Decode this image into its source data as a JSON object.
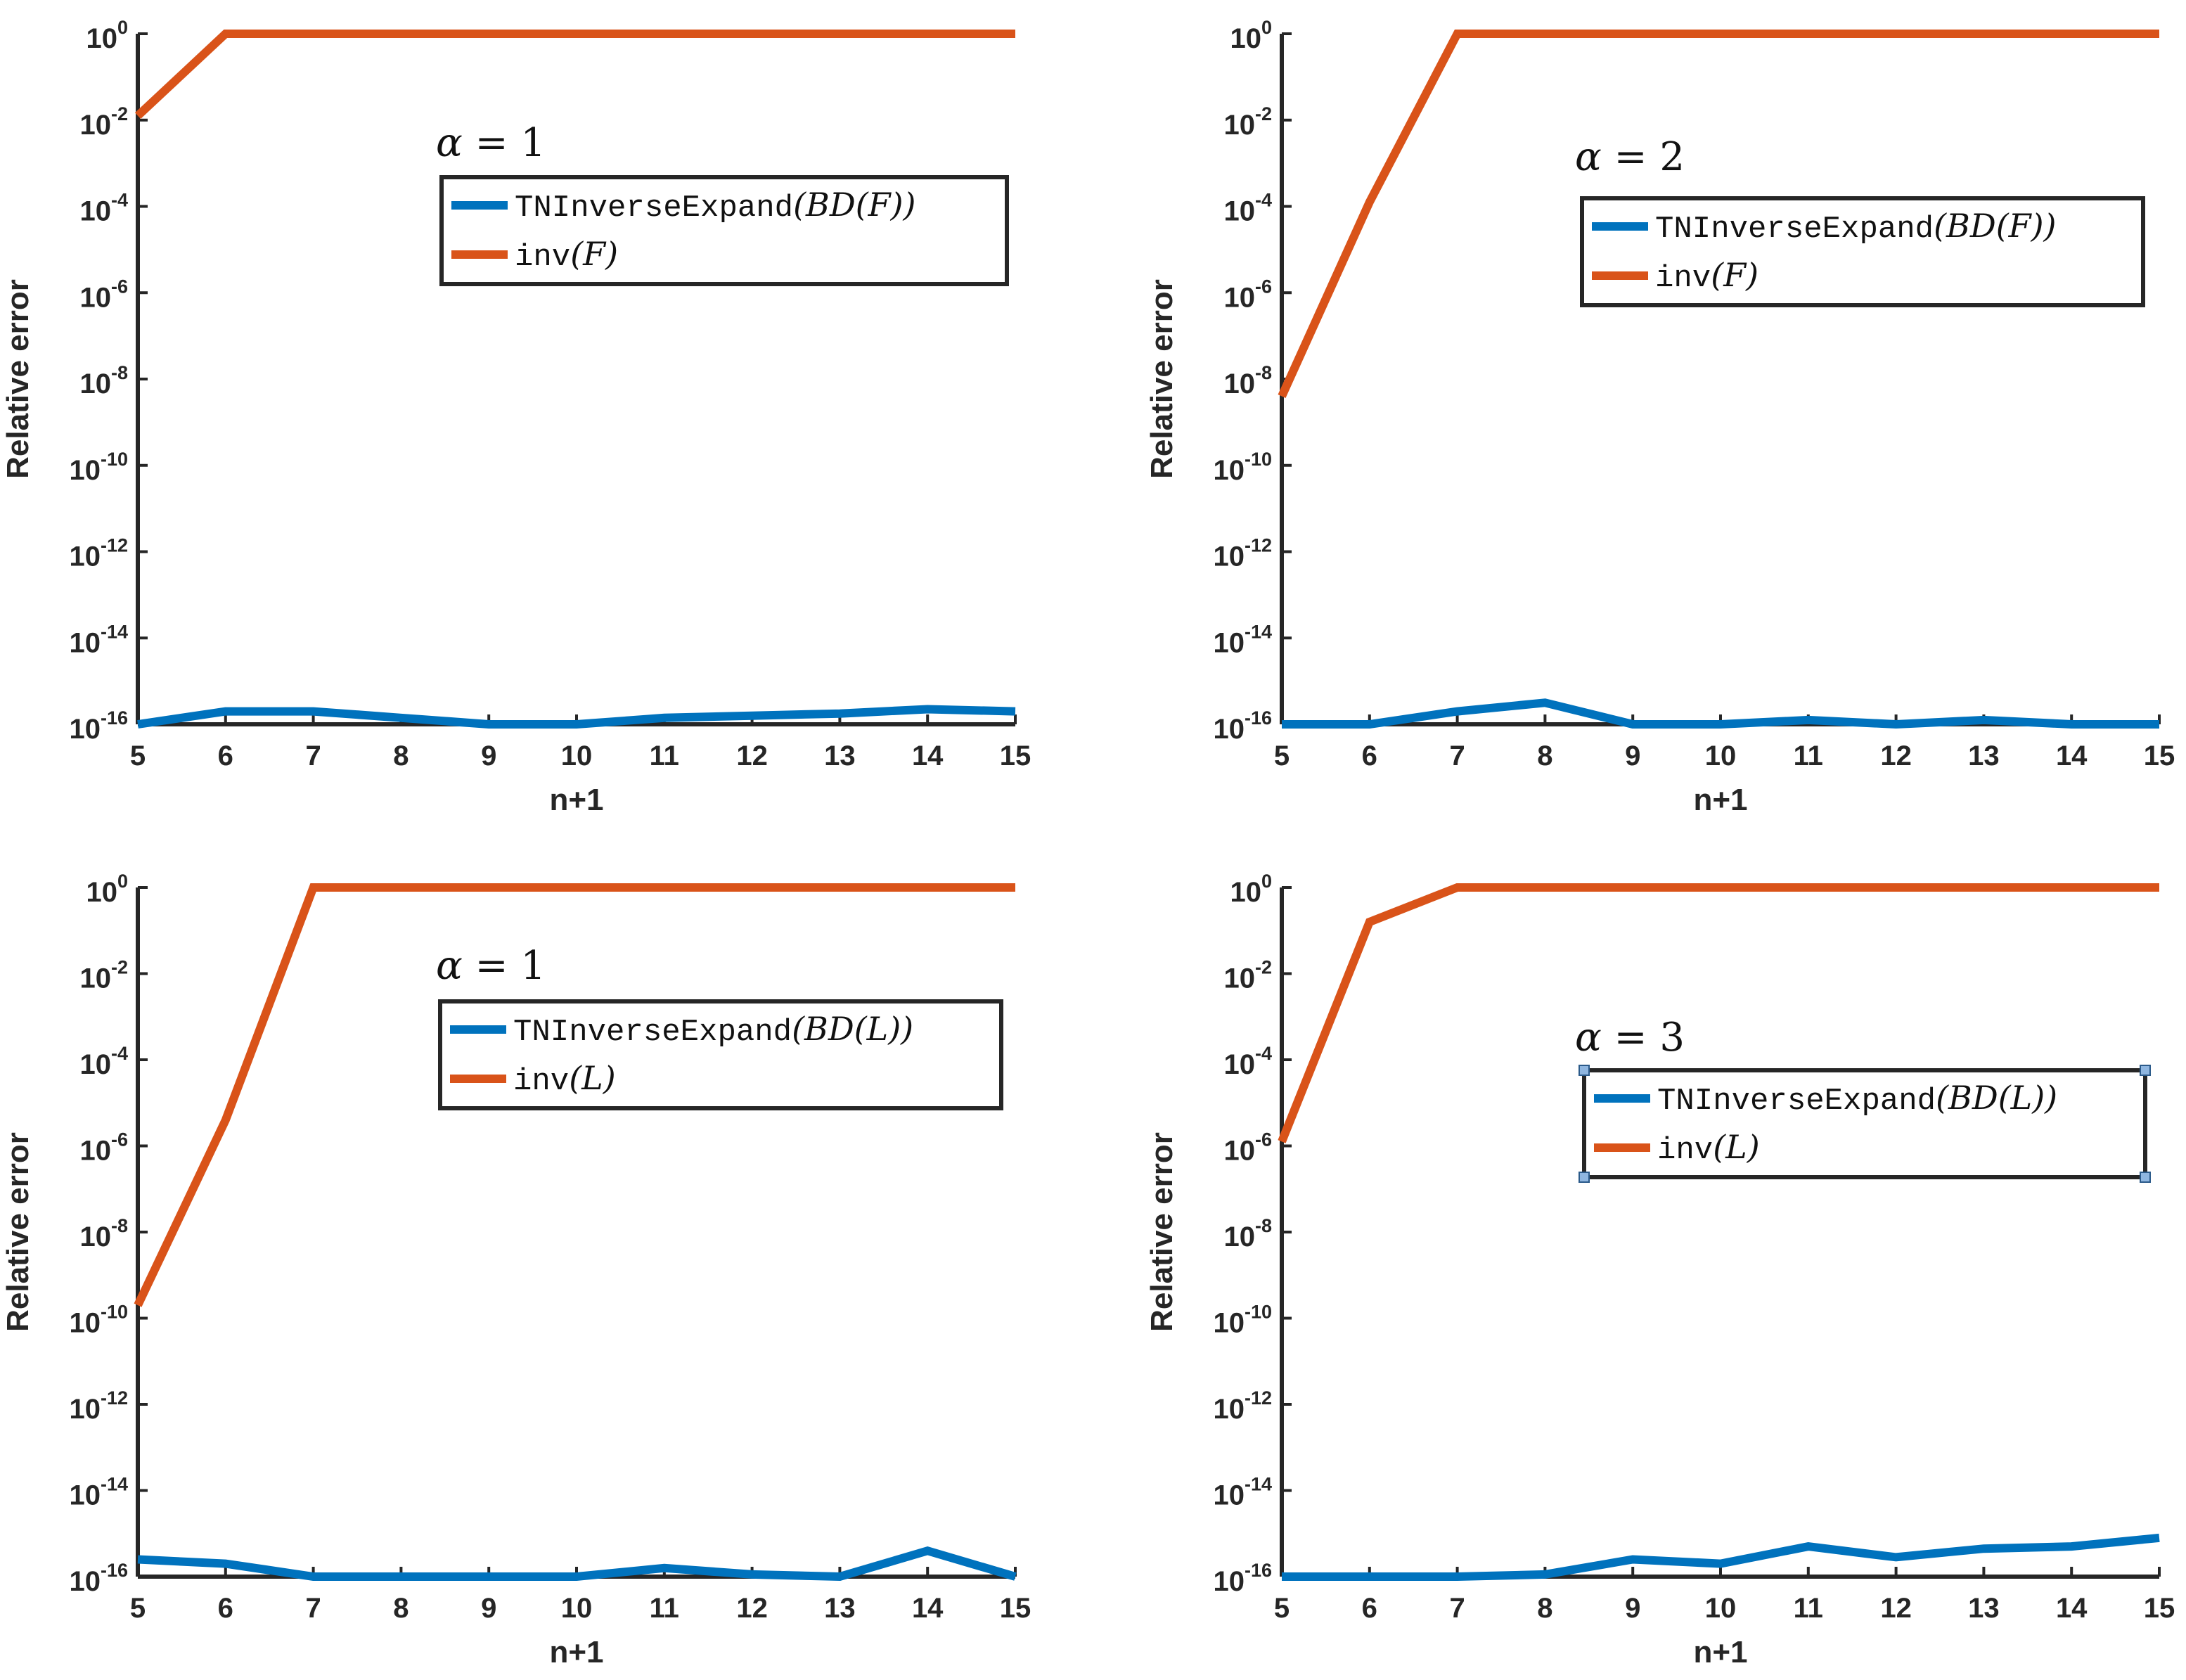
{
  "chart_data": [
    {
      "type": "line",
      "title": "",
      "xlabel": "n+1",
      "ylabel": "Relative error",
      "yscale": "log",
      "xlim": [
        5,
        15
      ],
      "ylim_exponents": [
        -16,
        0
      ],
      "x_ticks": [
        "5",
        "6",
        "7",
        "8",
        "9",
        "10",
        "11",
        "12",
        "13",
        "14",
        "15"
      ],
      "y_ticks": [
        {
          "base": "10",
          "exp": "0"
        },
        {
          "base": "10",
          "exp": "-2"
        },
        {
          "base": "10",
          "exp": "-4"
        },
        {
          "base": "10",
          "exp": "-6"
        },
        {
          "base": "10",
          "exp": "-8"
        },
        {
          "base": "10",
          "exp": "-10"
        },
        {
          "base": "10",
          "exp": "-12"
        },
        {
          "base": "10",
          "exp": "-14"
        },
        {
          "base": "10",
          "exp": "-16"
        }
      ],
      "annotation": {
        "symbol": "α",
        "rest": " = 1"
      },
      "legend_position": "top-center",
      "x": [
        5,
        6,
        7,
        8,
        9,
        10,
        11,
        12,
        13,
        14,
        15
      ],
      "series": [
        {
          "name": "TNInverseExpand(BD(F))",
          "color": "#0072BD",
          "legend": {
            "mono": "TNInverseExpand",
            "math": "(BD(F))"
          },
          "log10_values": [
            -16,
            -15.7,
            -15.7,
            -15.85,
            -16,
            -16,
            -15.85,
            -15.8,
            -15.75,
            -15.65,
            -15.7
          ]
        },
        {
          "name": "inv(F)",
          "color": "#D95319",
          "legend": {
            "mono": "inv",
            "math": "(F)"
          },
          "log10_values": [
            -1.9,
            0,
            0,
            0,
            0,
            0,
            0,
            0,
            0,
            0,
            0
          ]
        }
      ]
    },
    {
      "type": "line",
      "title": "",
      "xlabel": "n+1",
      "ylabel": "Relative error",
      "yscale": "log",
      "xlim": [
        5,
        15
      ],
      "ylim_exponents": [
        -16,
        0
      ],
      "x_ticks": [
        "5",
        "6",
        "7",
        "8",
        "9",
        "10",
        "11",
        "12",
        "13",
        "14",
        "15"
      ],
      "y_ticks": [
        {
          "base": "10",
          "exp": "0"
        },
        {
          "base": "10",
          "exp": "-2"
        },
        {
          "base": "10",
          "exp": "-4"
        },
        {
          "base": "10",
          "exp": "-6"
        },
        {
          "base": "10",
          "exp": "-8"
        },
        {
          "base": "10",
          "exp": "-10"
        },
        {
          "base": "10",
          "exp": "-12"
        },
        {
          "base": "10",
          "exp": "-14"
        },
        {
          "base": "10",
          "exp": "-16"
        }
      ],
      "annotation": {
        "symbol": "α",
        "rest": " = 2"
      },
      "legend_position": "top-right",
      "x": [
        5,
        6,
        7,
        8,
        9,
        10,
        11,
        12,
        13,
        14,
        15
      ],
      "series": [
        {
          "name": "TNInverseExpand(BD(F))",
          "color": "#0072BD",
          "legend": {
            "mono": "TNInverseExpand",
            "math": "(BD(F))"
          },
          "log10_values": [
            -16,
            -16,
            -15.7,
            -15.5,
            -16,
            -16,
            -15.9,
            -16,
            -15.9,
            -16,
            -16
          ]
        },
        {
          "name": "inv(F)",
          "color": "#D95319",
          "legend": {
            "mono": "inv",
            "math": "(F)"
          },
          "log10_values": [
            -8.4,
            -3.9,
            0,
            0,
            0,
            0,
            0,
            0,
            0,
            0,
            0
          ]
        }
      ]
    },
    {
      "type": "line",
      "title": "",
      "xlabel": "n+1",
      "ylabel": "Relative error",
      "yscale": "log",
      "xlim": [
        5,
        15
      ],
      "ylim_exponents": [
        -16,
        0
      ],
      "x_ticks": [
        "5",
        "6",
        "7",
        "8",
        "9",
        "10",
        "11",
        "12",
        "13",
        "14",
        "15"
      ],
      "y_ticks": [
        {
          "base": "10",
          "exp": "0"
        },
        {
          "base": "10",
          "exp": "-2"
        },
        {
          "base": "10",
          "exp": "-4"
        },
        {
          "base": "10",
          "exp": "-6"
        },
        {
          "base": "10",
          "exp": "-8"
        },
        {
          "base": "10",
          "exp": "-10"
        },
        {
          "base": "10",
          "exp": "-12"
        },
        {
          "base": "10",
          "exp": "-14"
        },
        {
          "base": "10",
          "exp": "-16"
        }
      ],
      "annotation": {
        "symbol": "α",
        "rest": " = 1"
      },
      "legend_position": "top-center",
      "x": [
        5,
        6,
        7,
        8,
        9,
        10,
        11,
        12,
        13,
        14,
        15
      ],
      "series": [
        {
          "name": "TNInverseExpand(BD(L))",
          "color": "#0072BD",
          "legend": {
            "mono": "TNInverseExpand",
            "math": "(BD(L))"
          },
          "log10_values": [
            -15.6,
            -15.7,
            -16,
            -16,
            -16,
            -16,
            -15.8,
            -15.95,
            -16,
            -15.4,
            -16
          ]
        },
        {
          "name": "inv(L)",
          "color": "#D95319",
          "legend": {
            "mono": "inv",
            "math": "(L)"
          },
          "log10_values": [
            -9.7,
            -5.4,
            0,
            0,
            0,
            0,
            0,
            0,
            0,
            0,
            0
          ]
        }
      ]
    },
    {
      "type": "line",
      "title": "",
      "xlabel": "n+1",
      "ylabel": "Relative error",
      "yscale": "log",
      "xlim": [
        5,
        15
      ],
      "ylim_exponents": [
        -16,
        0
      ],
      "x_ticks": [
        "5",
        "6",
        "7",
        "8",
        "9",
        "10",
        "11",
        "12",
        "13",
        "14",
        "15"
      ],
      "y_ticks": [
        {
          "base": "10",
          "exp": "0"
        },
        {
          "base": "10",
          "exp": "-2"
        },
        {
          "base": "10",
          "exp": "-4"
        },
        {
          "base": "10",
          "exp": "-6"
        },
        {
          "base": "10",
          "exp": "-8"
        },
        {
          "base": "10",
          "exp": "-10"
        },
        {
          "base": "10",
          "exp": "-12"
        },
        {
          "base": "10",
          "exp": "-14"
        },
        {
          "base": "10",
          "exp": "-16"
        }
      ],
      "annotation": {
        "symbol": "α",
        "rest": " = 3"
      },
      "legend_position": "right",
      "legend_selected": true,
      "x": [
        5,
        6,
        7,
        8,
        9,
        10,
        11,
        12,
        13,
        14,
        15
      ],
      "series": [
        {
          "name": "TNInverseExpand(BD(L))",
          "color": "#0072BD",
          "legend": {
            "mono": "TNInverseExpand",
            "math": "(BD(L))"
          },
          "log10_values": [
            -16,
            -16,
            -16,
            -15.95,
            -15.6,
            -15.7,
            -15.3,
            -15.55,
            -15.35,
            -15.3,
            -15.1
          ]
        },
        {
          "name": "inv(L)",
          "color": "#D95319",
          "legend": {
            "mono": "inv",
            "math": "(L)"
          },
          "log10_values": [
            -5.9,
            -0.8,
            0,
            0,
            0,
            0,
            0,
            0,
            0,
            0,
            0
          ]
        }
      ]
    }
  ]
}
